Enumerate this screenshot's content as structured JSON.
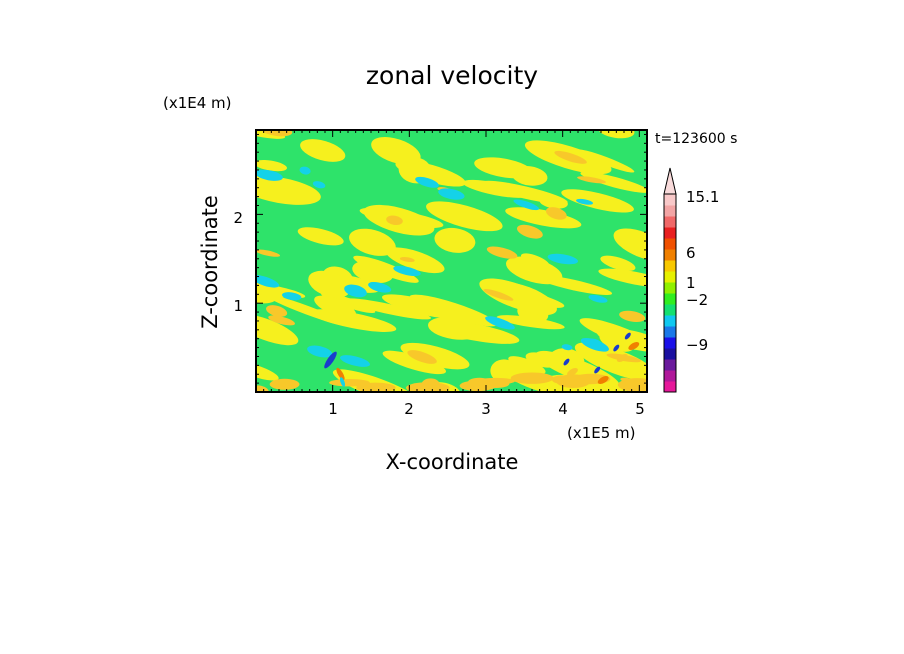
{
  "chart_data": {
    "type": "heatmap",
    "title": "zonal velocity",
    "xlabel": "X-coordinate",
    "ylabel": "Z-coordinate",
    "x_unit": "(x1E5 m)",
    "y_unit": "(x1E4 m)",
    "time_label": "t=123600 s",
    "xlim": [
      0,
      5.1
    ],
    "ylim": [
      0,
      2.95
    ],
    "x_ticks": [
      "1",
      "2",
      "3",
      "4",
      "5"
    ],
    "y_ticks": [
      "1",
      "2"
    ],
    "colorbar": {
      "labels": [
        "15.1",
        "6",
        "1",
        "-2",
        "-9"
      ],
      "label_texts": [
        "15.1",
        "6",
        "1",
        "−2",
        "−9"
      ],
      "colors": [
        "#e6189a",
        "#b0189a",
        "#6a1a9c",
        "#1a10a0",
        "#1a10e8",
        "#1a78e8",
        "#10c8f0",
        "#14e070",
        "#30ee20",
        "#90f000",
        "#e6f000",
        "#f8c800",
        "#f08000",
        "#f05000",
        "#e82020",
        "#f06868",
        "#f2a4a4",
        "#f8c8c8"
      ],
      "extend": "max"
    },
    "field_colors": {
      "neutral": "#2ee36a",
      "positive_weak": "#f6f01e",
      "positive_mid": "#f8c82a",
      "negative_weak": "#14d2e8",
      "negative_strong": "#1a3ccc",
      "positive_strong": "#f08000"
    }
  }
}
